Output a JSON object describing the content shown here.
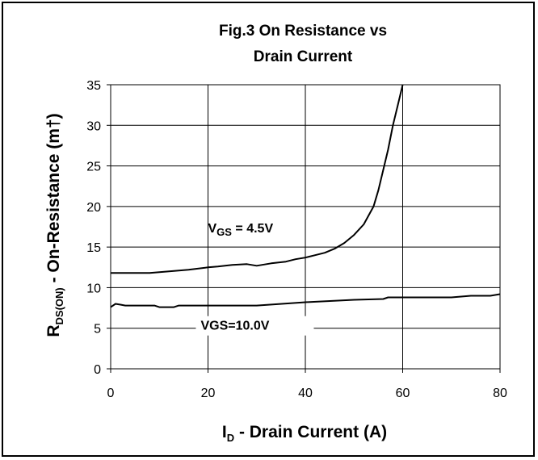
{
  "chart_data": {
    "type": "line",
    "title_line1": "Fig.3 On Resistance vs",
    "title_line2": "Drain Current",
    "xlabel": {
      "main": "I",
      "sub": "D",
      "rest": " - Drain Current (A)"
    },
    "ylabel": {
      "main": "R",
      "sub": "DS(ON)",
      "rest": " - On-Resistance (m†)"
    },
    "xlim": [
      0,
      80
    ],
    "ylim": [
      0,
      35
    ],
    "x_ticks": [
      0,
      20,
      40,
      60,
      80
    ],
    "y_ticks": [
      0,
      5,
      10,
      15,
      20,
      25,
      30,
      35
    ],
    "grid": true,
    "series": [
      {
        "label": {
          "main": "V",
          "sub": "GS",
          "rest": " = 4.5V"
        },
        "points": [
          [
            0,
            11.8
          ],
          [
            8,
            11.8
          ],
          [
            12,
            12.0
          ],
          [
            16,
            12.2
          ],
          [
            20,
            12.5
          ],
          [
            22,
            12.6
          ],
          [
            25,
            12.8
          ],
          [
            28,
            12.9
          ],
          [
            30,
            12.7
          ],
          [
            33,
            13.0
          ],
          [
            36,
            13.2
          ],
          [
            38,
            13.5
          ],
          [
            40,
            13.7
          ],
          [
            42,
            14.0
          ],
          [
            44,
            14.3
          ],
          [
            46,
            14.8
          ],
          [
            48,
            15.5
          ],
          [
            50,
            16.5
          ],
          [
            52,
            17.8
          ],
          [
            54,
            20.0
          ],
          [
            55,
            22.0
          ],
          [
            56,
            24.5
          ],
          [
            57,
            27.0
          ],
          [
            58,
            30.0
          ],
          [
            59,
            32.5
          ],
          [
            60,
            35.0
          ]
        ]
      },
      {
        "label": {
          "main": "VGS=10.0V",
          "sub": "",
          "rest": ""
        },
        "points": [
          [
            0,
            7.6
          ],
          [
            1,
            8.0
          ],
          [
            2,
            7.9
          ],
          [
            3,
            7.8
          ],
          [
            9,
            7.8
          ],
          [
            10,
            7.6
          ],
          [
            13,
            7.6
          ],
          [
            14,
            7.8
          ],
          [
            30,
            7.8
          ],
          [
            40,
            8.2
          ],
          [
            50,
            8.5
          ],
          [
            56,
            8.6
          ],
          [
            57,
            8.8
          ],
          [
            70,
            8.8
          ],
          [
            74,
            9.0
          ],
          [
            78,
            9.0
          ],
          [
            80,
            9.2
          ]
        ]
      }
    ]
  }
}
